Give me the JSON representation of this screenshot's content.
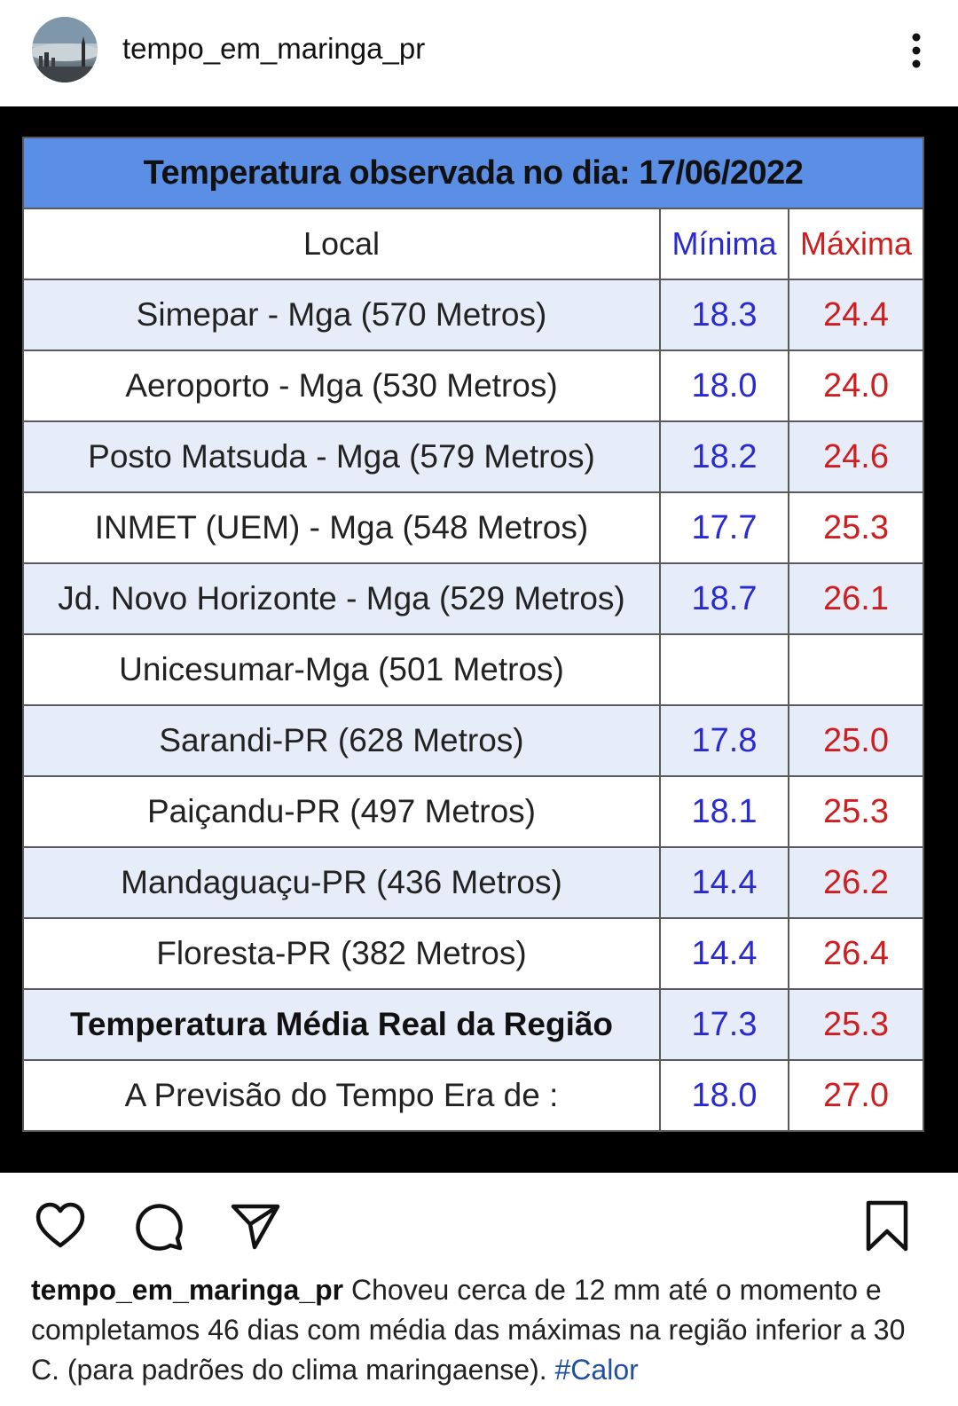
{
  "header": {
    "username": "tempo_em_maringa_pr"
  },
  "table": {
    "title": "Temperatura observada no dia: 17/06/2022",
    "col_local": "Local",
    "col_min": "Mínima",
    "col_max": "Máxima",
    "rows": [
      {
        "local": "Simepar - Mga  (570 Metros)",
        "min": "18.3",
        "max": "24.4"
      },
      {
        "local": "Aeroporto - Mga (530 Metros)",
        "min": "18.0",
        "max": "24.0"
      },
      {
        "local": "Posto Matsuda - Mga (579 Metros)",
        "min": "18.2",
        "max": "24.6"
      },
      {
        "local": "INMET (UEM) - Mga  (548 Metros)",
        "min": "17.7",
        "max": "25.3"
      },
      {
        "local": "Jd. Novo Horizonte - Mga (529 Metros)",
        "min": "18.7",
        "max": "26.1"
      },
      {
        "local": "Unicesumar-Mga (501 Metros)",
        "min": "",
        "max": ""
      },
      {
        "local": "Sarandi-PR  (628 Metros)",
        "min": "17.8",
        "max": "25.0"
      },
      {
        "local": "Paiçandu-PR (497 Metros)",
        "min": "18.1",
        "max": "25.3"
      },
      {
        "local": "Mandaguaçu-PR (436 Metros)",
        "min": "14.4",
        "max": "26.2"
      },
      {
        "local": "Floresta-PR (382 Metros)",
        "min": "14.4",
        "max": "26.4"
      }
    ],
    "average": {
      "local": "Temperatura Média Real da Região",
      "min": "17.3",
      "max": "25.3"
    },
    "forecast": {
      "local": "A Previsão do Tempo Era de :",
      "min": "18.0",
      "max": "27.0"
    }
  },
  "actions": {
    "like_icon": "heart-icon",
    "comment_icon": "comment-icon",
    "share_icon": "send-icon",
    "save_icon": "bookmark-icon"
  },
  "caption": {
    "username": "tempo_em_maringa_pr",
    "text": " Choveu cerca de 12 mm até o momento e completamos 46 dias com média das máximas na região inferior a 30 C. (para padrões do clima maringaense). ",
    "hashtag": "#Calor"
  },
  "colors": {
    "title_bg": "#5b8fe6",
    "min_color": "#2a2ad0",
    "max_color": "#d01e1e",
    "alt_row_bg": "#e6edf8"
  }
}
